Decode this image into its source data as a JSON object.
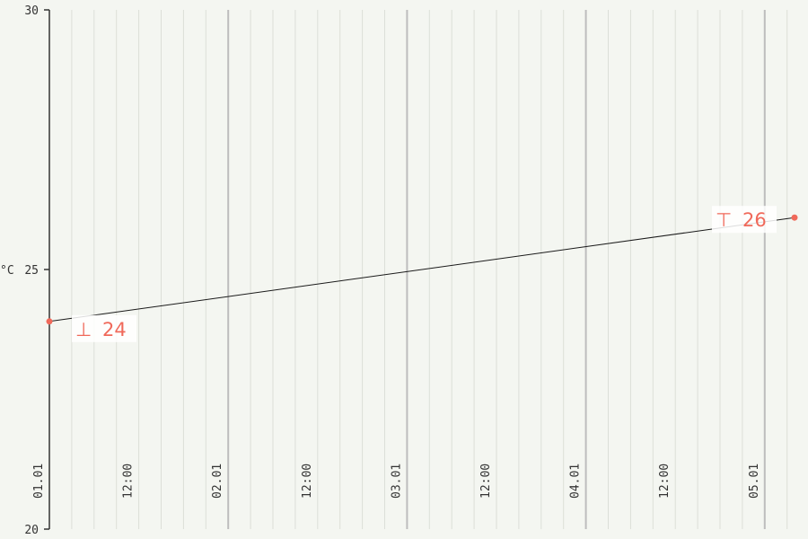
{
  "chart_data": {
    "type": "line",
    "title": "",
    "xlabel": "",
    "ylabel": "°C",
    "ylim": [
      20,
      30
    ],
    "xlim": [
      "2024-01-01T00:00",
      "2024-01-05T04:00"
    ],
    "yticks": [
      20,
      25,
      30
    ],
    "x_tick_labels": [
      {
        "at": "2024-01-01T00:00",
        "label": "01.01"
      },
      {
        "at": "2024-01-01T12:00",
        "label": "12:00"
      },
      {
        "at": "2024-01-02T00:00",
        "label": "02.01"
      },
      {
        "at": "2024-01-02T12:00",
        "label": "12:00"
      },
      {
        "at": "2024-01-03T00:00",
        "label": "03.01"
      },
      {
        "at": "2024-01-03T12:00",
        "label": "12:00"
      },
      {
        "at": "2024-01-04T00:00",
        "label": "04.01"
      },
      {
        "at": "2024-01-04T12:00",
        "label": "12:00"
      },
      {
        "at": "2024-01-05T00:00",
        "label": "05.01"
      }
    ],
    "series": [
      {
        "x": [
          "2024-01-01T00:00",
          "2024-01-05T04:00"
        ],
        "values": [
          24,
          26
        ],
        "color": "#1a1a1a"
      }
    ],
    "markers": [
      {
        "kind": "min",
        "symbol": "⊥",
        "label": "24",
        "x": "2024-01-01T00:00",
        "y": 24
      },
      {
        "kind": "max",
        "symbol": "⊤",
        "label": "26",
        "x": "2024-01-05T04:00",
        "y": 26
      }
    ],
    "colors": {
      "background": "#f4f6f1",
      "axis": "#333333",
      "grid_major": "#bdbdbd",
      "grid_minor": "#dcdfd8",
      "marker": "#f0695a",
      "line": "#1a1a1a"
    },
    "grid": true
  }
}
